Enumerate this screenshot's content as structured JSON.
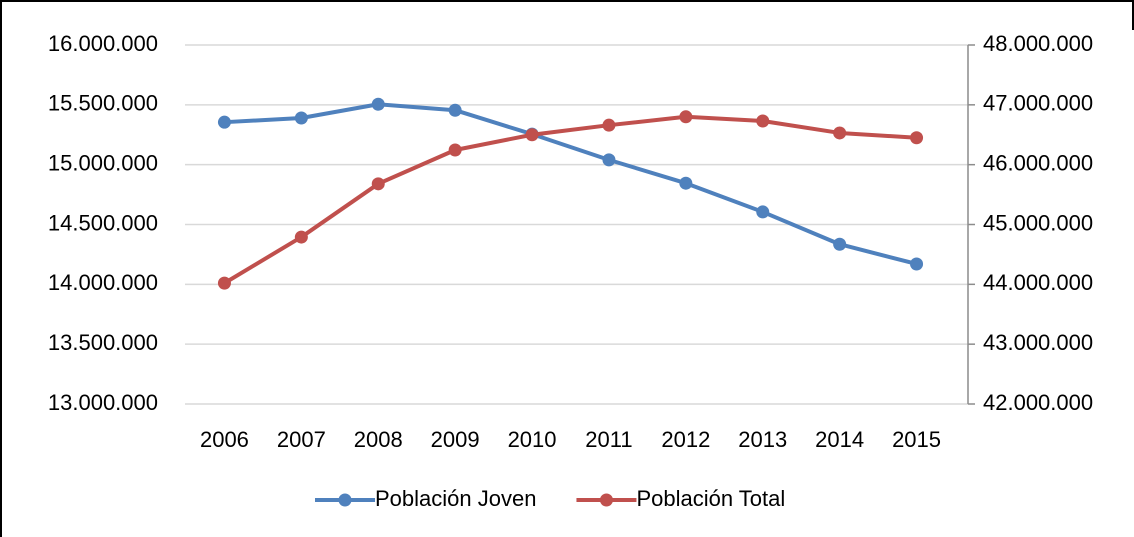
{
  "chart_data": {
    "type": "line",
    "categories": [
      "2006",
      "2007",
      "2008",
      "2009",
      "2010",
      "2011",
      "2012",
      "2013",
      "2014",
      "2015"
    ],
    "series": [
      {
        "name": "Población Joven",
        "color": "#4f81bd",
        "values": [
          15355000,
          15390000,
          15505000,
          15455000,
          15255000,
          15040000,
          14845000,
          14605000,
          14335000,
          14170000
        ]
      },
      {
        "name": "Población Total",
        "color": "#c0504d",
        "axis": "y2",
        "values": [
          44020000,
          44790000,
          45680000,
          46245000,
          46500000,
          46660000,
          46800000,
          46730000,
          46530000,
          46450000
        ]
      }
    ],
    "ylim": [
      13000000,
      16000000
    ],
    "yticks": [
      {
        "value": 13000000,
        "label": "13.000.000"
      },
      {
        "value": 13500000,
        "label": "13.500.000"
      },
      {
        "value": 14000000,
        "label": "14.000.000"
      },
      {
        "value": 14500000,
        "label": "14.500.000"
      },
      {
        "value": 15000000,
        "label": "15.000.000"
      },
      {
        "value": 15500000,
        "label": "15.500.000"
      },
      {
        "value": 16000000,
        "label": "16.000.000"
      }
    ],
    "y2lim": [
      42000000,
      48000000
    ],
    "y2ticks": [
      {
        "value": 42000000,
        "label": "42.000.000"
      },
      {
        "value": 43000000,
        "label": "43.000.000"
      },
      {
        "value": 44000000,
        "label": "44.000.000"
      },
      {
        "value": 45000000,
        "label": "45.000.000"
      },
      {
        "value": 46000000,
        "label": "46.000.000"
      },
      {
        "value": 47000000,
        "label": "47.000.000"
      },
      {
        "value": 48000000,
        "label": "48.000.000"
      }
    ],
    "grid": true,
    "legend": "bottom"
  }
}
